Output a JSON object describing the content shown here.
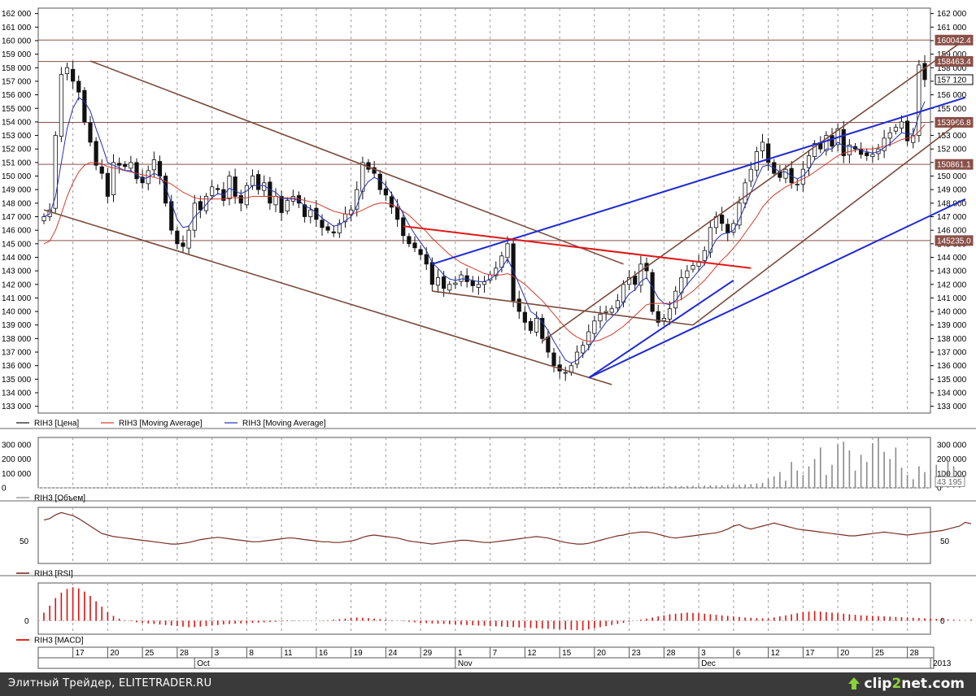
{
  "colors": {
    "price": "#111111",
    "ma_slow": "#d63a2a",
    "ma_fast": "#2230b8",
    "channel_brown": "#7a4a3a",
    "trend_blue": "#1f2ad0",
    "trend_red": "#e01818",
    "hline": "#8a5048",
    "volume": "#8a8a8a",
    "rsi": "#7a2e22",
    "macd": "#e01010",
    "grid": "#999999",
    "status_bg": "#3a3a3a",
    "logo_accent": "#8bd13a"
  },
  "status_bar": {
    "text": "Элитный Трейдер, ELITETRADER.RU"
  },
  "logo": {
    "text_a": "clip",
    "text_b": "2",
    "text_c": "net",
    "text_d": ".com"
  },
  "chart_data": [
    {
      "type": "candlestick",
      "panel": "price",
      "ylim": [
        132500,
        162400
      ],
      "y_ticks": [
        "133 000",
        "134 000",
        "135 000",
        "136 000",
        "137 000",
        "138 000",
        "139 000",
        "140 000",
        "141 000",
        "142 000",
        "143 000",
        "144 000",
        "145 000",
        "146 000",
        "147 000",
        "148 000",
        "149 000",
        "150 000",
        "151 000",
        "152 000",
        "153 000",
        "154 000",
        "155 000",
        "156 000",
        "157 000",
        "158 000",
        "159 000",
        "160 000",
        "161 000",
        "162 000"
      ],
      "level_labels": [
        "160042.4",
        "158463.4",
        "157 120",
        "153966.8",
        "150861.1",
        "145235.0"
      ],
      "levels": [
        160042.4,
        158463.4,
        153966.8,
        150861.1,
        145235.0
      ],
      "last_price": 157120,
      "legend": [
        "RIH3 [Цена]",
        "RIH3 [Moving Average]",
        "RIH3 [Moving Average]"
      ],
      "close": [
        147000,
        147500,
        153000,
        157500,
        158000,
        157000,
        156200,
        154000,
        152500,
        150800,
        150200,
        148500,
        151000,
        150800,
        150700,
        151000,
        149800,
        149500,
        150400,
        151200,
        150000,
        148000,
        146000,
        145000,
        144800,
        146000,
        148000,
        147500,
        148500,
        149200,
        149000,
        148200,
        150000,
        148500,
        148000,
        149300,
        150000,
        149000,
        149500,
        148000,
        148500,
        147300,
        148200,
        148500,
        148000,
        147000,
        147500,
        146800,
        146200,
        146000,
        145800,
        146500,
        147200,
        147500,
        149000,
        151000,
        150500,
        150200,
        149000,
        148600,
        147700,
        146800,
        145600,
        145000,
        144700,
        144200,
        143500,
        142000,
        142500,
        141700,
        142000,
        142100,
        142700,
        142200,
        141900,
        142000,
        142200,
        142700,
        143200,
        144100,
        145000,
        140800,
        140000,
        139200,
        138600,
        139500,
        138000,
        137000,
        136000,
        135600,
        135500,
        136000,
        137000,
        137500,
        138500,
        139300,
        139800,
        140000,
        140200,
        140800,
        142000,
        142500,
        142000,
        143500,
        143000,
        140000,
        139200,
        139500,
        140200,
        141500,
        142500,
        143000,
        143400,
        143700,
        144500,
        146200,
        147000,
        146500,
        145800,
        146500,
        148000,
        149500,
        150500,
        151800,
        152500,
        151000,
        150200,
        149900,
        150500,
        149500,
        149400,
        150500,
        151500,
        152400,
        152000,
        153000,
        152200,
        153500,
        151500,
        152300,
        152000,
        151600,
        151500,
        151600,
        152000,
        152800,
        153200,
        153600,
        154000,
        152600,
        153000,
        158200,
        157120
      ],
      "ma_fast": [
        147000,
        147200,
        148500,
        151000,
        153500,
        155000,
        155800,
        155500,
        154800,
        153500,
        152300,
        151000,
        150800,
        150600,
        150400,
        150400,
        150100,
        149800,
        149900,
        150200,
        150000,
        149200,
        148000,
        146800,
        146200,
        146300,
        147000,
        147400,
        147900,
        148400,
        148700,
        148600,
        149100,
        148900,
        148700,
        148900,
        149300,
        149300,
        149300,
        149000,
        148800,
        148400,
        148300,
        148300,
        148200,
        147800,
        147600,
        147300,
        146900,
        146600,
        146300,
        146400,
        146700,
        147000,
        147800,
        149000,
        149600,
        149900,
        149700,
        149300,
        148700,
        148000,
        147200,
        146400,
        145700,
        145100,
        144500,
        143600,
        143200,
        142700,
        142400,
        142300,
        142400,
        142400,
        142300,
        142200,
        142200,
        142400,
        142700,
        143200,
        143900,
        143000,
        142000,
        141000,
        140000,
        139700,
        139200,
        138600,
        137800,
        137100,
        136400,
        136200,
        136400,
        136800,
        137300,
        138000,
        138600,
        139200,
        139600,
        140000,
        140700,
        141300,
        141600,
        142200,
        142500,
        141800,
        141000,
        140600,
        140500,
        140800,
        141400,
        142000,
        142500,
        143000,
        143500,
        144500,
        145300,
        145700,
        145800,
        146000,
        146800,
        147800,
        148800,
        149800,
        150700,
        150800,
        150600,
        150300,
        150300,
        150000,
        149800,
        150000,
        150500,
        151200,
        151500,
        152000,
        152000,
        152500,
        152200,
        152200,
        152100,
        151900,
        151800,
        151700,
        151800,
        152100,
        152400,
        152800,
        153200,
        153100,
        153100,
        154500,
        155500
      ],
      "ma_slow": [
        145000,
        145200,
        146000,
        147200,
        148500,
        149500,
        150300,
        150800,
        151000,
        151000,
        150900,
        150700,
        150600,
        150500,
        150400,
        150300,
        150200,
        150100,
        150000,
        149900,
        149800,
        149600,
        149400,
        149100,
        148800,
        148600,
        148400,
        148300,
        148300,
        148300,
        148300,
        148300,
        148400,
        148400,
        148400,
        148400,
        148500,
        148500,
        148500,
        148500,
        148500,
        148400,
        148400,
        148400,
        148300,
        148200,
        148100,
        148000,
        147800,
        147600,
        147400,
        147300,
        147200,
        147200,
        147300,
        147500,
        147700,
        147900,
        148000,
        148000,
        147900,
        147700,
        147400,
        147100,
        146700,
        146300,
        145900,
        145400,
        145000,
        144600,
        144200,
        143900,
        143600,
        143400,
        143200,
        143000,
        142800,
        142700,
        142700,
        142700,
        142800,
        142600,
        142300,
        142000,
        141600,
        141200,
        140800,
        140300,
        139800,
        139300,
        138800,
        138400,
        138100,
        137900,
        137800,
        137800,
        137900,
        138100,
        138300,
        138600,
        138900,
        139300,
        139700,
        140100,
        140500,
        140600,
        140600,
        140600,
        140600,
        140700,
        140900,
        141200,
        141500,
        141900,
        142300,
        142800,
        143300,
        143800,
        144200,
        144700,
        145200,
        145800,
        146400,
        147000,
        147700,
        148200,
        148600,
        148900,
        149200,
        149400,
        149600,
        149800,
        150000,
        150300,
        150600,
        150900,
        151200,
        151500,
        151700,
        151800,
        151900,
        152000,
        152000,
        152000,
        152100,
        152200,
        152300,
        152500,
        152700,
        152800,
        152900,
        153300,
        153800
      ],
      "trendlines": [
        {
          "name": "upper-down-channel",
          "color_key": "channel_brown",
          "x1": 8,
          "y1": 158500,
          "x2": 100,
          "y2": 143500
        },
        {
          "name": "lower-down-channel",
          "color_key": "channel_brown",
          "x1": 0,
          "y1": 147500,
          "x2": 98,
          "y2": 134600
        },
        {
          "name": "upper-up-channel",
          "color_key": "channel_brown",
          "x1": 86,
          "y1": 137800,
          "x2": 158,
          "y2": 159800
        },
        {
          "name": "lower-up-channel",
          "color_key": "channel_brown",
          "x1": 112,
          "y1": 139000,
          "x2": 158,
          "y2": 154000
        },
        {
          "name": "blue-upper",
          "color_key": "trend_blue",
          "x1": 67,
          "y1": 143500,
          "x2": 159,
          "y2": 155800
        },
        {
          "name": "blue-lower",
          "color_key": "trend_blue",
          "x1": 94,
          "y1": 135100,
          "x2": 159,
          "y2": 148300
        },
        {
          "name": "blue-support",
          "color_key": "trend_blue",
          "x1": 94,
          "y1": 135100,
          "x2": 119,
          "y2": 142300
        },
        {
          "name": "red-resistance",
          "color_key": "trend_red",
          "x1": 62,
          "y1": 146300,
          "x2": 122,
          "y2": 143200
        },
        {
          "name": "red-support",
          "color_key": "channel_brown",
          "x1": 67,
          "y1": 141500,
          "x2": 112,
          "y2": 139000
        }
      ],
      "x_ticks": [
        {
          "index": 5,
          "label": "17"
        },
        {
          "index": 11,
          "label": "20"
        },
        {
          "index": 17,
          "label": "25"
        },
        {
          "index": 23,
          "label": "28"
        },
        {
          "index": 29,
          "label": "3"
        },
        {
          "index": 35,
          "label": "8"
        },
        {
          "index": 41,
          "label": "11"
        },
        {
          "index": 47,
          "label": "16"
        },
        {
          "index": 53,
          "label": "19"
        },
        {
          "index": 59,
          "label": "24"
        },
        {
          "index": 65,
          "label": "29"
        },
        {
          "index": 71,
          "label": "1"
        },
        {
          "index": 77,
          "label": "7"
        },
        {
          "index": 83,
          "label": "12"
        },
        {
          "index": 89,
          "label": "15"
        },
        {
          "index": 95,
          "label": "20"
        },
        {
          "index": 101,
          "label": "23"
        },
        {
          "index": 107,
          "label": "28"
        },
        {
          "index": 113,
          "label": "3"
        },
        {
          "index": 119,
          "label": "6"
        },
        {
          "index": 125,
          "label": "12"
        },
        {
          "index": 131,
          "label": "17"
        },
        {
          "index": 137,
          "label": "20"
        },
        {
          "index": 143,
          "label": "25"
        },
        {
          "index": 149,
          "label": "28"
        }
      ],
      "month_labels": [
        {
          "index": 26,
          "label": "Oct"
        },
        {
          "index": 71,
          "label": "Nov"
        },
        {
          "index": 113,
          "label": "Dec"
        },
        {
          "index": 153,
          "label": "2013"
        }
      ]
    },
    {
      "type": "bar",
      "panel": "volume",
      "ylim": [
        0,
        350000
      ],
      "y_ticks": [
        "300 000",
        "200 000",
        "100 000",
        "0"
      ],
      "last_value_label": "43 195",
      "legend": [
        "RIH3 [Объем]"
      ],
      "values": [
        1000,
        1200,
        1500,
        2200,
        2000,
        1800,
        1600,
        1500,
        1400,
        1300,
        1500,
        1400,
        1300,
        1200,
        1300,
        1400,
        1500,
        1400,
        1300,
        1200,
        1400,
        1500,
        1600,
        1400,
        1300,
        1200,
        1300,
        1400,
        1500,
        1600,
        1500,
        1400,
        1300,
        1500,
        1600,
        1400,
        1300,
        1200,
        1300,
        1400,
        1500,
        1600,
        1700,
        1500,
        1400,
        1600,
        1800,
        1700,
        1600,
        1500,
        1700,
        1900,
        2000,
        2100,
        2200,
        2300,
        2400,
        2500,
        2300,
        2200,
        2100,
        2300,
        2500,
        2700,
        2600,
        2400,
        2500,
        2700,
        2900,
        3000,
        2800,
        2900,
        3100,
        3300,
        3500,
        3400,
        3200,
        3600,
        3800,
        4000,
        4200,
        4500,
        4300,
        4100,
        4400,
        4700,
        5000,
        5200,
        5500,
        5300,
        5100,
        5400,
        5800,
        6000,
        6300,
        6600,
        6900,
        7200,
        7500,
        7800,
        8100,
        8400,
        8800,
        9200,
        9600,
        10000,
        10500,
        11000,
        11500,
        12000,
        12500,
        13000,
        14000,
        15000,
        16000,
        17000,
        18000,
        19000,
        20000,
        21000,
        22000,
        24000,
        26000,
        30000,
        35000,
        60000,
        80000,
        110000,
        50000,
        180000,
        120000,
        90000,
        150000,
        200000,
        280000,
        90000,
        160000,
        300000,
        320000,
        260000,
        120000,
        230000,
        180000,
        310000,
        350000,
        250000,
        200000,
        280000,
        140000,
        90000,
        60000,
        150000,
        110000,
        130000,
        160000,
        120000,
        190000,
        150000,
        43195
      ]
    },
    {
      "type": "line",
      "panel": "rsi",
      "ylim": [
        20,
        95
      ],
      "y_ticks": [
        "50"
      ],
      "legend": [
        "RIH3 [RSI]"
      ],
      "values": [
        78,
        80,
        85,
        88,
        86,
        84,
        80,
        75,
        70,
        65,
        60,
        58,
        56,
        55,
        54,
        53,
        52,
        51,
        50,
        49,
        48,
        47,
        46,
        46,
        47,
        48,
        50,
        52,
        53,
        54,
        55,
        54,
        53,
        52,
        51,
        50,
        49,
        49,
        50,
        51,
        52,
        53,
        54,
        54,
        53,
        52,
        51,
        50,
        49,
        49,
        48,
        48,
        49,
        50,
        52,
        55,
        57,
        58,
        57,
        56,
        55,
        54,
        52,
        50,
        49,
        48,
        47,
        46,
        47,
        48,
        49,
        50,
        51,
        51,
        50,
        49,
        48,
        48,
        49,
        50,
        51,
        52,
        53,
        54,
        55,
        56,
        55,
        54,
        52,
        50,
        48,
        47,
        46,
        46,
        47,
        49,
        51,
        53,
        55,
        57,
        58,
        60,
        61,
        62,
        62,
        61,
        59,
        57,
        55,
        54,
        55,
        56,
        57,
        58,
        59,
        60,
        61,
        63,
        66,
        70,
        72,
        68,
        66,
        68,
        70,
        72,
        74,
        72,
        70,
        68,
        66,
        65,
        64,
        63,
        62,
        61,
        60,
        59,
        58,
        57,
        57,
        58,
        59,
        60,
        61,
        62,
        61,
        60,
        59,
        58,
        59,
        60,
        61,
        62,
        63,
        64,
        66,
        68,
        70,
        75,
        73
      ]
    },
    {
      "type": "bar",
      "panel": "macd",
      "ylim": [
        -250,
        700
      ],
      "y_ticks": [
        "0"
      ],
      "legend": [
        "RIH3 [MACD]"
      ],
      "values": [
        150,
        280,
        420,
        520,
        590,
        620,
        600,
        540,
        460,
        360,
        260,
        160,
        90,
        40,
        10,
        -10,
        -30,
        -40,
        -50,
        -60,
        -70,
        -80,
        -90,
        -100,
        -110,
        -120,
        -120,
        -110,
        -100,
        -90,
        -80,
        -70,
        -60,
        -55,
        -50,
        -45,
        -40,
        -35,
        -30,
        -25,
        -20,
        -15,
        -10,
        -8,
        -6,
        -4,
        -2,
        0,
        5,
        10,
        20,
        30,
        40,
        50,
        60,
        55,
        50,
        40,
        30,
        20,
        10,
        0,
        -10,
        -20,
        -30,
        -40,
        -45,
        -50,
        -55,
        -60,
        -65,
        -70,
        -75,
        -80,
        -85,
        -90,
        -95,
        -100,
        -105,
        -110,
        -115,
        -120,
        -125,
        -130,
        -135,
        -140,
        -145,
        -150,
        -155,
        -160,
        -165,
        -170,
        -175,
        -180,
        -160,
        -140,
        -120,
        -100,
        -80,
        -60,
        -40,
        -20,
        0,
        20,
        40,
        60,
        80,
        100,
        120,
        130,
        140,
        150,
        145,
        140,
        130,
        120,
        110,
        100,
        90,
        80,
        70,
        60,
        55,
        50,
        45,
        40,
        60,
        80,
        100,
        120,
        140,
        160,
        170,
        180,
        170,
        160,
        150,
        140,
        130,
        120,
        110,
        100,
        95,
        90,
        85,
        80,
        75,
        70,
        65,
        60,
        55,
        50,
        45,
        40,
        35,
        30,
        25,
        20,
        15,
        10,
        20,
        40,
        60,
        80,
        100,
        120,
        140
      ]
    }
  ]
}
